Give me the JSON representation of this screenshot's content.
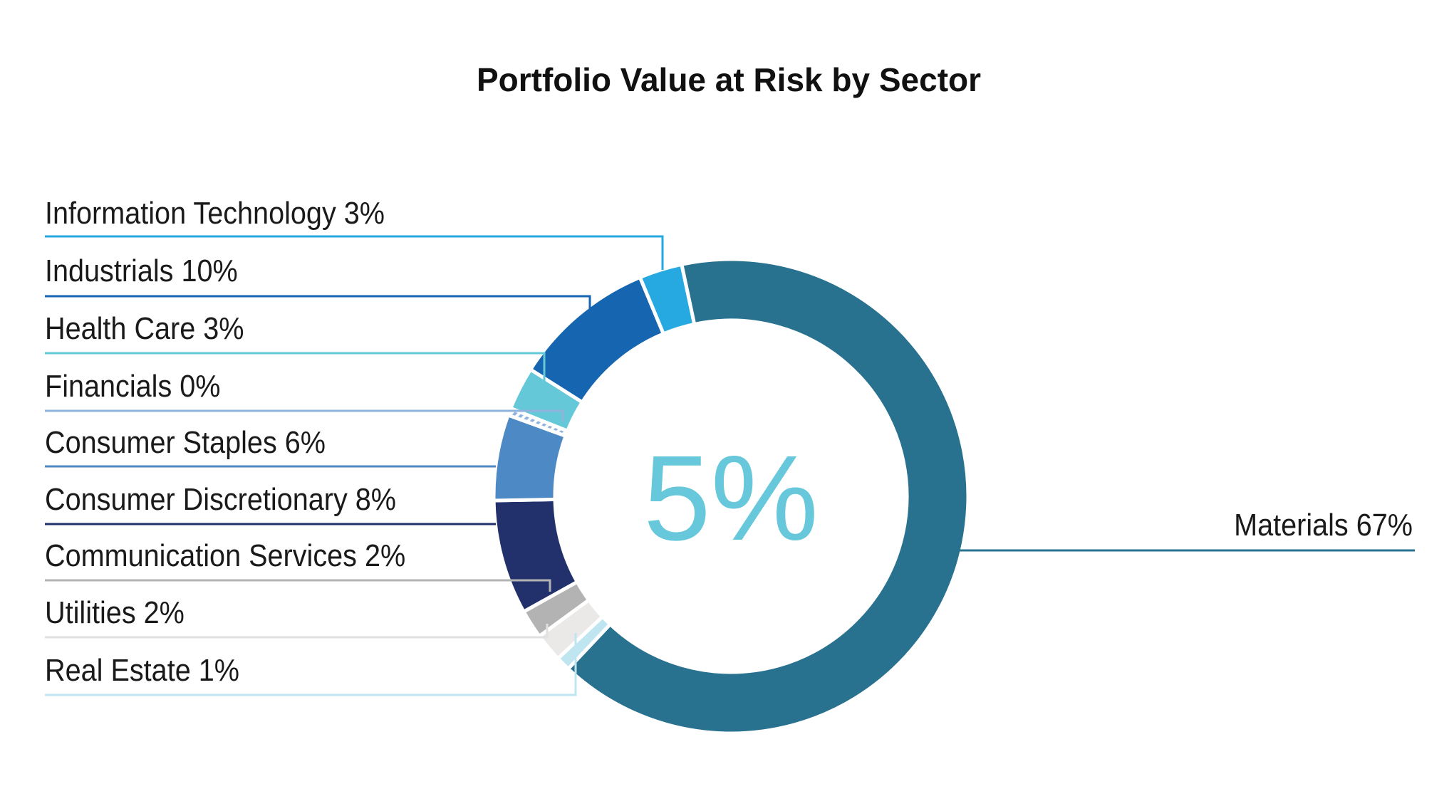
{
  "chart_data": {
    "type": "pie",
    "variant": "donut",
    "title": "Portfolio Value at Risk by Sector",
    "center_label": "5%",
    "center_color": "#66c8da",
    "slices": [
      {
        "label": "Materials",
        "value": 67,
        "text": "Materials 67%",
        "color": "#28728f"
      },
      {
        "label": "Real Estate",
        "value": 1,
        "text": "Real Estate 1%",
        "color": "#bfe6f0"
      },
      {
        "label": "Utilities",
        "value": 2,
        "text": "Utilities 2%",
        "color": "#ebe8e8"
      },
      {
        "label": "Communication Services",
        "value": 2,
        "text": "Communication Services 2%",
        "color": "#b3b3b3"
      },
      {
        "label": "Consumer Discretionary",
        "value": 8,
        "text": "Consumer Discretionary 8%",
        "color": "#22316b"
      },
      {
        "label": "Consumer Staples",
        "value": 6,
        "text": "Consumer Staples 6%",
        "color": "#4d89c4"
      },
      {
        "label": "Financials",
        "value": 0,
        "text": "Financials 0%",
        "color": "#8fb3dd",
        "pattern": "hatched"
      },
      {
        "label": "Health Care",
        "value": 3,
        "text": "Health Care 3%",
        "color": "#64c8d8"
      },
      {
        "label": "Industrials",
        "value": 10,
        "text": "Industrials 10%",
        "color": "#1565b0"
      },
      {
        "label": "Information Technology",
        "value": 3,
        "text": "Information Technology 3%",
        "color": "#25a9e0"
      }
    ],
    "legend": "leader-line labels"
  }
}
